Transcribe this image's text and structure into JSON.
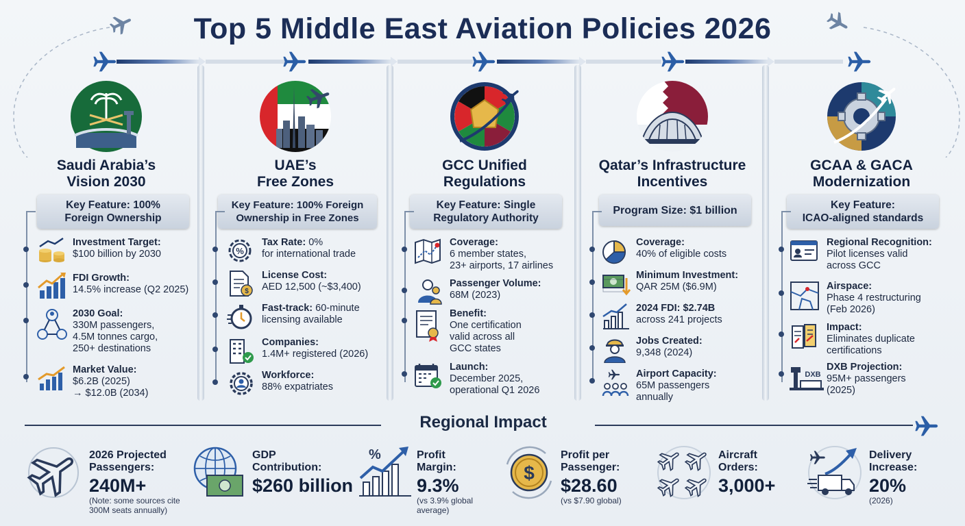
{
  "title": "Top 5 Middle East Aviation Policies 2026",
  "colors": {
    "navy": "#1b2d56",
    "accent": "#2e5fa8",
    "gray": "#c9d2de"
  },
  "columns": [
    {
      "title_line1": "Saudi Arabia’s",
      "title_line2": "Vision 2030",
      "icon": "saudi-emblem-icon",
      "feature_line1": "Key Feature: 100%",
      "feature_line2": "Foreign Ownership",
      "items": [
        {
          "icon": "coins-growth-icon",
          "label": "Investment Target:",
          "line1": "$100 billion by 2030",
          "line2": "",
          "line3": ""
        },
        {
          "icon": "bar-growth-icon",
          "label": "FDI Growth:",
          "line1": "14.5% increase (Q2 2025)",
          "line2": "",
          "line3": ""
        },
        {
          "icon": "network-goal-icon",
          "label": "2030 Goal:",
          "line1": "330M passengers,",
          "line2": "4.5M tonnes cargo,",
          "line3": "250+ destinations"
        },
        {
          "icon": "chart-up-icon",
          "label": "Market Value:",
          "line1": "$6.2B (2025)",
          "line2": "→ $12.0B (2034)",
          "line3": ""
        }
      ]
    },
    {
      "title_line1": "UAE’s",
      "title_line2": "Free Zones",
      "icon": "uae-skyline-icon",
      "feature_line1": "Key Feature: 100% Foreign",
      "feature_line2": "Ownership in Free Zones",
      "items": [
        {
          "icon": "percent-gear-icon",
          "label": "Tax Rate: ",
          "inline": "0%",
          "line1": "for international trade",
          "line2": ""
        },
        {
          "icon": "license-doc-icon",
          "label": "License Cost:",
          "inline": "",
          "line1": "AED 12,500 (~$3,400)",
          "line2": ""
        },
        {
          "icon": "stopwatch-icon",
          "label": "Fast-track: ",
          "inline": "60-minute",
          "line1": "licensing available",
          "line2": ""
        },
        {
          "icon": "building-check-icon",
          "label": "Companies:",
          "inline": "",
          "line1": "1.4M+ registered (2026)",
          "line2": ""
        },
        {
          "icon": "workforce-gear-icon",
          "label": "Workforce:",
          "inline": "",
          "line1": "88% expatriates",
          "line2": ""
        }
      ]
    },
    {
      "title_line1": "GCC Unified",
      "title_line2": "Regulations",
      "icon": "gcc-emblem-icon",
      "feature_line1": "Key Feature: Single",
      "feature_line2": "Regulatory Authority",
      "items": [
        {
          "icon": "map-route-icon",
          "label": "Coverage:",
          "line1": "6 member states,",
          "line2": "23+ airports, 17 airlines",
          "line3": ""
        },
        {
          "icon": "passengers-icon",
          "label": "Passenger Volume:",
          "line1": "68M (2023)",
          "line2": "",
          "line3": ""
        },
        {
          "icon": "certificate-icon",
          "label": "Benefit:",
          "line1": "One certification",
          "line2": "valid across all",
          "line3": "GCC states"
        },
        {
          "icon": "calendar-check-icon",
          "label": "Launch:",
          "line1": "December 2025,",
          "line2": "operational Q1 2026",
          "line3": ""
        }
      ]
    },
    {
      "title_line1": "Qatar’s Infrastructure",
      "title_line2": "Incentives",
      "icon": "qatar-airport-icon",
      "feature_line1": "Program Size: $1 billion",
      "feature_line2": "",
      "items": [
        {
          "icon": "pie-chart-icon",
          "label": "Coverage:",
          "line1": "40% of eligible costs",
          "line2": ""
        },
        {
          "icon": "money-down-icon",
          "label": "Minimum Investment:",
          "line1": "QAR 25M ($6.9M)",
          "line2": ""
        },
        {
          "icon": "bar-chart-icon",
          "label": "2024 FDI: $2.74B",
          "line1": "across 241 projects",
          "line2": ""
        },
        {
          "icon": "worker-icon",
          "label": "Jobs Created:",
          "line1": "9,348 (2024)",
          "line2": ""
        },
        {
          "icon": "airport-capacity-icon",
          "label": "Airport Capacity:",
          "line1": "65M passengers",
          "line2": "annually"
        }
      ]
    },
    {
      "title_line1": "GCAA & GACA",
      "title_line2": "Modernization",
      "icon": "gear-plane-icon",
      "feature_line1": "Key Feature:",
      "feature_line2": "ICAO-aligned standards",
      "items": [
        {
          "icon": "id-card-icon",
          "label": "Regional Recognition:",
          "line1": "Pilot licenses valid",
          "line2": "across GCC",
          "line3": ""
        },
        {
          "icon": "airspace-map-icon",
          "label": "Airspace:",
          "line1": "Phase 4 restructuring",
          "line2": "(Feb 2026)",
          "line3": ""
        },
        {
          "icon": "documents-icon",
          "label": "Impact:",
          "line1": "Eliminates duplicate",
          "line2": "certifications",
          "line3": ""
        },
        {
          "icon": "dxb-tower-icon",
          "label": "DXB Projection:",
          "line1": "95M+ passengers",
          "line2": "(2025)",
          "line3": "",
          "icon_text": "DXB"
        }
      ]
    }
  ],
  "regional": {
    "title": "Regional Impact",
    "stats": [
      {
        "icon": "plane-circle-icon",
        "label1": "2026 Projected",
        "label2": "Passengers:",
        "value": "240M+",
        "note1": "(Note: some sources cite",
        "note2": "300M seats annually)"
      },
      {
        "icon": "globe-money-icon",
        "label1": "GDP",
        "label2": "Contribution:",
        "value": "$260 billion",
        "note1": "",
        "note2": ""
      },
      {
        "icon": "margin-chart-icon",
        "label1": "Profit",
        "label2": "Margin:",
        "value": "9.3%",
        "note1": "(vs 3.9% global",
        "note2": "average)",
        "icon_text": "%"
      },
      {
        "icon": "dollar-coin-icon",
        "label1": "Profit per",
        "label2": "Passenger:",
        "value": "$28.60",
        "note1": "(vs $7.90 global)",
        "note2": "",
        "icon_text": "$"
      },
      {
        "icon": "aircraft-fleet-icon",
        "label1": "Aircraft",
        "label2": "Orders:",
        "value": "3,000+",
        "note1": "",
        "note2": ""
      },
      {
        "icon": "delivery-truck-icon",
        "label1": "Delivery",
        "label2": "Increase:",
        "value": "20%",
        "note1": "(2026)",
        "note2": ""
      }
    ]
  }
}
